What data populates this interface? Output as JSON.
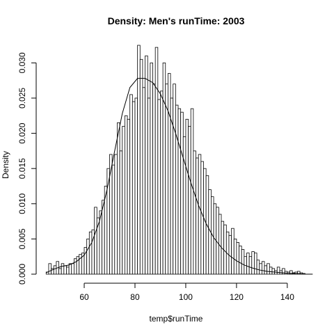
{
  "chart_data": {
    "type": "bar",
    "title": "Density: Men's runTime:  2003",
    "xlabel": "temp$runTime",
    "ylabel": "Density",
    "xlim": [
      43,
      151
    ],
    "ylim": [
      0,
      0.033
    ],
    "x_ticks": [
      60,
      80,
      100,
      120,
      140
    ],
    "y_ticks": [
      0.0,
      0.005,
      0.01,
      0.015,
      0.02,
      0.025,
      0.03
    ],
    "x_tick_labels": [
      "60",
      "80",
      "100",
      "120",
      "140"
    ],
    "y_tick_labels": [
      "0.000",
      "0.005",
      "0.010",
      "0.015",
      "0.020",
      "0.025",
      "0.030"
    ],
    "bin_width": 1,
    "bin_start": 45,
    "values": [
      0.0003,
      0.0015,
      0.0008,
      0.0012,
      0.0018,
      0.0008,
      0.0015,
      0.0012,
      0.001,
      0.0015,
      0.0015,
      0.0022,
      0.0025,
      0.0028,
      0.003,
      0.0038,
      0.005,
      0.006,
      0.0063,
      0.0095,
      0.008,
      0.009,
      0.0105,
      0.0125,
      0.015,
      0.017,
      0.0155,
      0.017,
      0.0215,
      0.0175,
      0.021,
      0.0225,
      0.022,
      0.0255,
      0.0245,
      0.025,
      0.0325,
      0.0305,
      0.0265,
      0.031,
      0.025,
      0.03,
      0.027,
      0.0322,
      0.0248,
      0.026,
      0.03,
      0.027,
      0.0285,
      0.025,
      0.027,
      0.024,
      0.0235,
      0.023,
      0.0195,
      0.022,
      0.021,
      0.0235,
      0.0175,
      0.0165,
      0.017,
      0.016,
      0.015,
      0.014,
      0.012,
      0.011,
      0.01,
      0.0095,
      0.0085,
      0.0075,
      0.007,
      0.006,
      0.0055,
      0.0065,
      0.005,
      0.0045,
      0.004,
      0.0035,
      0.0025,
      0.003,
      0.0025,
      0.0032,
      0.003,
      0.002,
      0.0015,
      0.0018,
      0.0012,
      0.0015,
      0.001,
      0.0008,
      0.0005,
      0.001,
      0.0005,
      0.0008,
      0.0004,
      0.0003,
      0.0005,
      0.0002,
      0.0003,
      0.0004,
      0.0002,
      0.0001
    ],
    "density_curve": {
      "x": [
        45,
        48,
        51,
        54,
        57,
        60,
        63,
        66,
        69,
        72,
        75,
        78,
        81,
        84,
        87,
        90,
        93,
        96,
        99,
        102,
        105,
        108,
        111,
        114,
        117,
        120,
        123,
        126,
        129,
        132,
        135,
        138,
        141,
        144,
        147,
        150
      ],
      "y": [
        0.0002,
        0.0007,
        0.0011,
        0.0013,
        0.0018,
        0.0027,
        0.0045,
        0.0075,
        0.012,
        0.0175,
        0.0228,
        0.0265,
        0.0278,
        0.0278,
        0.0272,
        0.0256,
        0.0232,
        0.02,
        0.0165,
        0.013,
        0.0098,
        0.0072,
        0.0052,
        0.0038,
        0.0027,
        0.0019,
        0.0013,
        0.0009,
        0.0006,
        0.0004,
        0.0003,
        0.0002,
        0.0001,
        0.0001,
        0.0,
        0.0
      ]
    },
    "grid": false
  }
}
